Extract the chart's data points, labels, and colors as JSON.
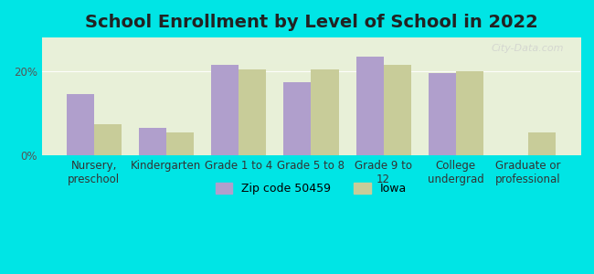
{
  "title": "School Enrollment by Level of School in 2022",
  "categories": [
    "Nursery,\npreschool",
    "Kindergarten",
    "Grade 1 to 4",
    "Grade 5 to 8",
    "Grade 9 to\n12",
    "College\nundergrad",
    "Graduate or\nprofessional"
  ],
  "zip_values": [
    14.5,
    6.5,
    21.5,
    17.5,
    23.5,
    19.5,
    0.0
  ],
  "iowa_values": [
    7.5,
    5.5,
    20.5,
    20.5,
    21.5,
    20.0,
    5.5
  ],
  "zip_color": "#b09fcc",
  "iowa_color": "#c8cc99",
  "background_outer": "#00e5e5",
  "background_inner_top": "#f0f5e8",
  "background_inner_bottom": "#ffffff",
  "ylabel_ticks": [
    "0%",
    "20%"
  ],
  "yticks": [
    0,
    20
  ],
  "ylim": [
    0,
    28
  ],
  "legend_zip_label": "Zip code 50459",
  "legend_iowa_label": "Iowa",
  "bar_width": 0.38,
  "title_fontsize": 14,
  "tick_fontsize": 8.5,
  "legend_fontsize": 9,
  "watermark_text": "City-Data.com"
}
